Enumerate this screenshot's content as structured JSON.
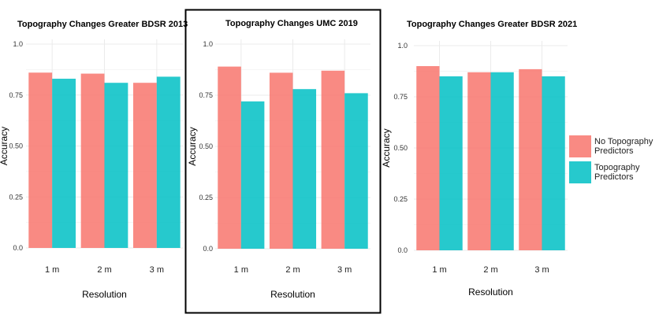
{
  "colors": {
    "no_topo": "#F8766D",
    "topo": "#00BFC4",
    "grid": "#EBEBEB",
    "highlight_border": "#000000"
  },
  "legend": {
    "items": [
      "No Topography Predictors",
      "Topography Predictors"
    ]
  },
  "chart_data": [
    {
      "type": "bar",
      "title": "Topography Changes Greater BDSR 2013",
      "xlabel": "Resolution",
      "ylabel": "Accuracy",
      "categories": [
        "1 m",
        "2 m",
        "3 m"
      ],
      "yticks": [
        "0.0",
        "0.25",
        "0.50",
        "0.75",
        "1.0"
      ],
      "ylim": [
        0,
        1
      ],
      "series": [
        {
          "name": "No Topography Predictors",
          "values": [
            0.86,
            0.855,
            0.81
          ]
        },
        {
          "name": "Topography Predictors",
          "values": [
            0.83,
            0.81,
            0.84
          ]
        }
      ],
      "grid": true,
      "highlighted": false
    },
    {
      "type": "bar",
      "title": "Topography Changes UMC 2019",
      "xlabel": "Resolution",
      "ylabel": "Accuracy",
      "categories": [
        "1 m",
        "2 m",
        "3 m"
      ],
      "yticks": [
        "0.0",
        "0.25",
        "0.50",
        "0.75",
        "1.0"
      ],
      "ylim": [
        0,
        1
      ],
      "series": [
        {
          "name": "No Topography Predictors",
          "values": [
            0.89,
            0.86,
            0.87
          ]
        },
        {
          "name": "Topography Predictors",
          "values": [
            0.72,
            0.78,
            0.76
          ]
        }
      ],
      "grid": true,
      "highlighted": true
    },
    {
      "type": "bar",
      "title": "Topography Changes Greater BDSR 2021",
      "xlabel": "Resolution",
      "ylabel": "Accuracy",
      "categories": [
        "1 m",
        "2 m",
        "3 m"
      ],
      "yticks": [
        "0.0",
        "0.25",
        "0.50",
        "0.75",
        "1.0"
      ],
      "ylim": [
        0,
        1
      ],
      "series": [
        {
          "name": "No Topography Predictors",
          "values": [
            0.9,
            0.87,
            0.885
          ]
        },
        {
          "name": "Topography Predictors",
          "values": [
            0.85,
            0.87,
            0.85
          ]
        }
      ],
      "grid": true,
      "highlighted": false
    }
  ]
}
